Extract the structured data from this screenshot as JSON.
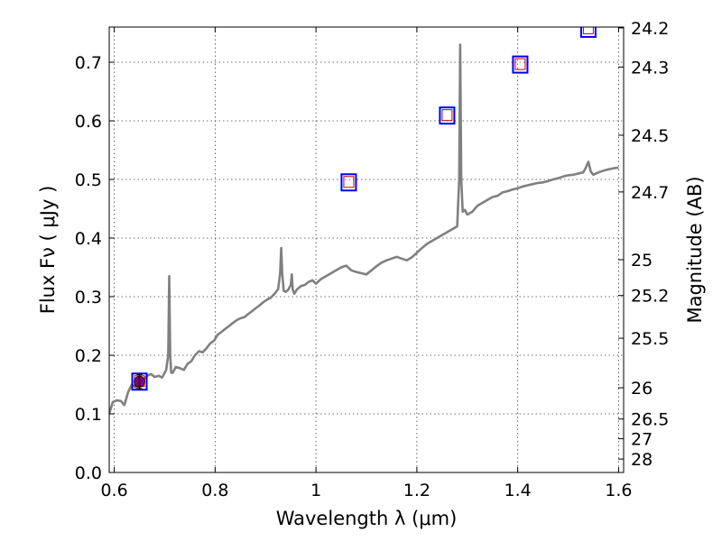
{
  "chart_data": {
    "type": "line",
    "xlabel": "Wavelength  λ (μm)",
    "ylabel": "Flux  Fν  ( μJy )",
    "y2label": "Magnitude (AB)",
    "xlim": [
      0.59,
      1.61
    ],
    "ylim": [
      0.0,
      0.76
    ],
    "grid": true,
    "x_ticks": [
      "0.6",
      "0.8",
      "1",
      "1.2",
      "1.4",
      "1.6"
    ],
    "x_tick_values": [
      0.6,
      0.8,
      1.0,
      1.2,
      1.4,
      1.6
    ],
    "y_ticks": [
      "0.0",
      "0.1",
      "0.2",
      "0.3",
      "0.4",
      "0.5",
      "0.6",
      "0.7"
    ],
    "y_tick_values": [
      0.0,
      0.1,
      0.2,
      0.3,
      0.4,
      0.5,
      0.6,
      0.7
    ],
    "y2_ticks": [
      "24.2",
      "24.3",
      "24.5",
      "24.7",
      "25",
      "25.2",
      "25.5",
      "26",
      "26.5",
      "27",
      "28"
    ],
    "y2_tick_values": [
      24.2,
      24.3,
      24.5,
      24.7,
      25.0,
      25.2,
      25.5,
      26.0,
      26.5,
      27.0,
      28.0
    ],
    "spectrum": {
      "color": "#808080",
      "x": [
        0.59,
        0.597,
        0.605,
        0.613,
        0.62,
        0.628,
        0.635,
        0.643,
        0.65,
        0.658,
        0.665,
        0.673,
        0.68,
        0.688,
        0.695,
        0.703,
        0.707,
        0.709,
        0.711,
        0.713,
        0.716,
        0.722,
        0.73,
        0.738,
        0.745,
        0.753,
        0.76,
        0.768,
        0.775,
        0.783,
        0.79,
        0.798,
        0.805,
        0.813,
        0.82,
        0.828,
        0.835,
        0.843,
        0.85,
        0.858,
        0.865,
        0.873,
        0.88,
        0.888,
        0.895,
        0.903,
        0.91,
        0.918,
        0.925,
        0.929,
        0.931,
        0.933,
        0.936,
        0.94,
        0.945,
        0.95,
        0.952,
        0.954,
        0.957,
        0.962,
        0.97,
        0.978,
        0.985,
        0.993,
        1.0,
        1.01,
        1.02,
        1.03,
        1.04,
        1.05,
        1.06,
        1.07,
        1.08,
        1.09,
        1.1,
        1.11,
        1.12,
        1.13,
        1.14,
        1.15,
        1.16,
        1.17,
        1.18,
        1.19,
        1.2,
        1.21,
        1.22,
        1.23,
        1.24,
        1.25,
        1.26,
        1.27,
        1.28,
        1.284,
        1.286,
        1.288,
        1.291,
        1.295,
        1.3,
        1.31,
        1.32,
        1.33,
        1.34,
        1.35,
        1.36,
        1.37,
        1.38,
        1.39,
        1.4,
        1.41,
        1.42,
        1.43,
        1.44,
        1.45,
        1.46,
        1.47,
        1.48,
        1.49,
        1.5,
        1.51,
        1.52,
        1.53,
        1.535,
        1.54,
        1.545,
        1.55,
        1.56,
        1.57,
        1.58,
        1.59,
        1.6
      ],
      "y": [
        0.1,
        0.12,
        0.123,
        0.122,
        0.115,
        0.138,
        0.15,
        0.145,
        0.148,
        0.158,
        0.165,
        0.168,
        0.163,
        0.165,
        0.162,
        0.175,
        0.2,
        0.335,
        0.2,
        0.17,
        0.17,
        0.18,
        0.178,
        0.175,
        0.185,
        0.19,
        0.2,
        0.207,
        0.205,
        0.212,
        0.22,
        0.225,
        0.235,
        0.24,
        0.245,
        0.25,
        0.255,
        0.26,
        0.263,
        0.265,
        0.27,
        0.275,
        0.28,
        0.285,
        0.29,
        0.295,
        0.298,
        0.305,
        0.313,
        0.34,
        0.383,
        0.34,
        0.31,
        0.308,
        0.312,
        0.32,
        0.338,
        0.312,
        0.305,
        0.312,
        0.318,
        0.32,
        0.325,
        0.328,
        0.322,
        0.33,
        0.335,
        0.34,
        0.345,
        0.35,
        0.353,
        0.345,
        0.342,
        0.34,
        0.338,
        0.345,
        0.352,
        0.358,
        0.362,
        0.365,
        0.368,
        0.365,
        0.362,
        0.367,
        0.375,
        0.383,
        0.39,
        0.395,
        0.4,
        0.405,
        0.41,
        0.415,
        0.42,
        0.5,
        0.73,
        0.5,
        0.445,
        0.448,
        0.44,
        0.445,
        0.455,
        0.46,
        0.465,
        0.47,
        0.472,
        0.478,
        0.48,
        0.483,
        0.485,
        0.488,
        0.49,
        0.492,
        0.494,
        0.495,
        0.497,
        0.5,
        0.502,
        0.505,
        0.507,
        0.508,
        0.51,
        0.512,
        0.52,
        0.53,
        0.513,
        0.508,
        0.512,
        0.515,
        0.517,
        0.519,
        0.52
      ]
    },
    "photometry": {
      "box_color": "#0000ff",
      "inner_color": "#d00000",
      "points": [
        {
          "x": 0.65,
          "y": 0.155
        },
        {
          "x": 1.065,
          "y": 0.495
        },
        {
          "x": 1.26,
          "y": 0.609
        },
        {
          "x": 1.405,
          "y": 0.696
        },
        {
          "x": 1.54,
          "y": 0.757
        }
      ]
    },
    "measured_point": {
      "x": 0.65,
      "y": 0.155,
      "err": 0.012,
      "color": "#800080"
    }
  }
}
